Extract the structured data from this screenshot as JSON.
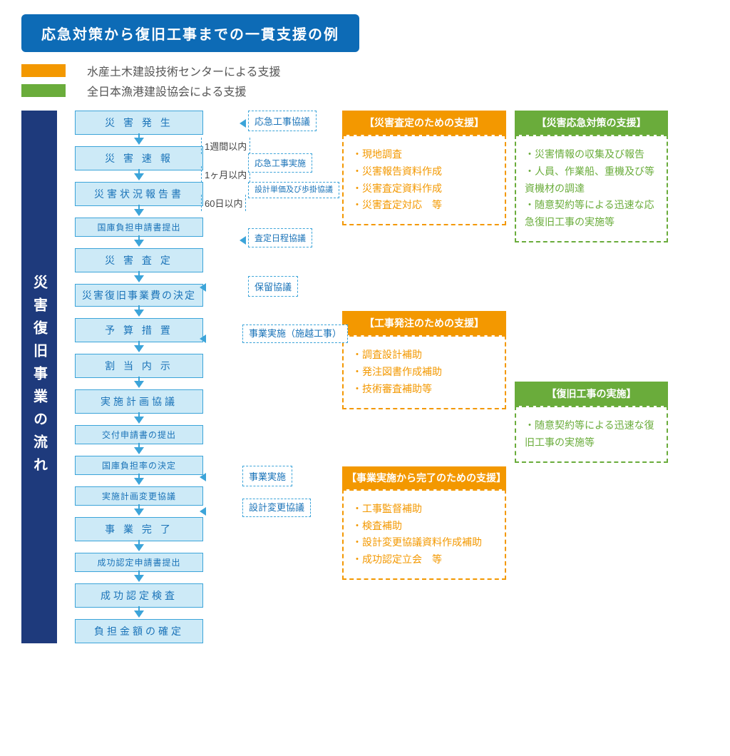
{
  "colors": {
    "blue_dark": "#1e3a7c",
    "blue_title": "#0d6bb6",
    "blue_box_bg": "#cdeaf7",
    "blue_border": "#3ca4d9",
    "blue_text": "#1a73b8",
    "orange": "#f39800",
    "green": "#6aac3b"
  },
  "title": "応急対策から復旧工事までの一貫支援の例",
  "legend": {
    "orange": "水産土木建設技術センターによる支援",
    "green": "全日本漁港建設協会による支援"
  },
  "sidebar": "災害復旧事業の流れ",
  "flow_steps": [
    {
      "label": "災 害 発 生"
    },
    {
      "label": "災 害 速 報"
    },
    {
      "label": "災害状況報告書"
    },
    {
      "label": "国庫負担申請書提出",
      "small": true
    },
    {
      "label": "災 害 査 定"
    },
    {
      "label": "災害復旧事業費の決定",
      "two_line": true
    },
    {
      "label": "予 算 措 置"
    },
    {
      "label": "割 当 内 示"
    },
    {
      "label": "実施計画協議"
    },
    {
      "label": "交付申請書の提出",
      "small": true
    },
    {
      "label": "国庫負担率の決定",
      "small": true
    },
    {
      "label": "実施計画変更協議",
      "small": true
    },
    {
      "label": "事 業 完 了"
    },
    {
      "label": "成功認定申請書提出",
      "small": true
    },
    {
      "label": "成功認定検査"
    },
    {
      "label": "負担金額の確定"
    }
  ],
  "timing_labels": {
    "t1": "1週間以内",
    "t2": "1ヶ月以内",
    "t3": "60日以内"
  },
  "side_notes": {
    "n1": "応急工事協議",
    "n2": "応急工事実施",
    "n3": "設計単価及び歩掛協議",
    "n4": "査定日程協議",
    "n5": "保留協議",
    "n6": "事業実施（施越工事）",
    "n7": "事業実施",
    "n8": "設計変更協議"
  },
  "support_orange": [
    {
      "title": "【災害査定のための支援】",
      "items": [
        "・現地調査",
        "・災害報告資料作成",
        "・災害査定資料作成",
        "・災害査定対応　等"
      ]
    },
    {
      "title": "【工事発注のための支援】",
      "items": [
        "・調査設計補助",
        "・発注図書作成補助",
        "・技術審査補助等"
      ]
    },
    {
      "title": "【事業実施から完了のための支援】",
      "items": [
        "・工事監督補助",
        "・検査補助",
        "・設計変更協議資料作成補助",
        "・成功認定立会　等"
      ]
    }
  ],
  "support_green": [
    {
      "title": "【災害応急対策の支援】",
      "items": [
        "・災害情報の収集及び報告",
        "・人員、作業船、重機及び等資機材の調達",
        "・随意契約等による迅速な応急復旧工事の実施等"
      ]
    },
    {
      "title": "【復旧工事の実施】",
      "items": [
        "・随意契約等による迅速な復旧工事の実施等"
      ]
    }
  ]
}
